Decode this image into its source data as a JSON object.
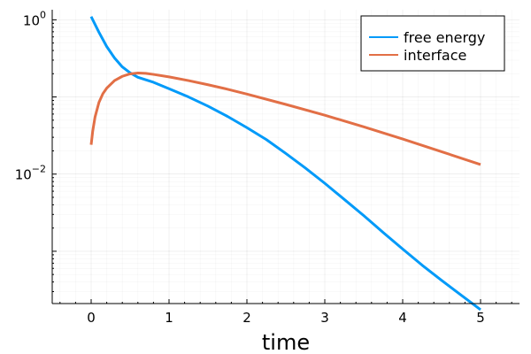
{
  "chart_data": {
    "type": "line",
    "title": "",
    "xlabel": "time",
    "ylabel": "",
    "xlim": [
      -0.5,
      5.5
    ],
    "ylim": [
      0.00021,
      1.35
    ],
    "y_scale": "log10",
    "grid": true,
    "legend_position": "top-right",
    "x_ticks": [
      0,
      1,
      2,
      3,
      4,
      5
    ],
    "x_tick_labels": [
      "0",
      "1",
      "2",
      "3",
      "4",
      "5"
    ],
    "y_ticks": [
      {
        "value": 1,
        "base": "10",
        "exponent": "0"
      },
      {
        "value": 0.01,
        "base": "10",
        "exponent": "−2"
      }
    ],
    "series": [
      {
        "name": "free energy",
        "color": "#009af9",
        "x": [
          0,
          0.1,
          0.2,
          0.3,
          0.4,
          0.5,
          0.6,
          0.8,
          1.0,
          1.25,
          1.5,
          1.75,
          2.0,
          2.25,
          2.5,
          2.75,
          3.0,
          3.25,
          3.5,
          3.75,
          4.0,
          4.25,
          4.5,
          4.75,
          5.0
        ],
        "y": [
          1.1,
          0.69,
          0.45,
          0.32,
          0.245,
          0.205,
          0.18,
          0.155,
          0.128,
          0.1,
          0.076,
          0.056,
          0.04,
          0.028,
          0.0185,
          0.012,
          0.0076,
          0.0047,
          0.0029,
          0.00175,
          0.00107,
          0.00066,
          0.00042,
          0.00027,
          0.000175
        ]
      },
      {
        "name": "interface",
        "color": "#e26f46",
        "x": [
          0,
          0.02,
          0.05,
          0.1,
          0.15,
          0.2,
          0.3,
          0.4,
          0.5,
          0.6,
          0.7,
          0.8,
          1.0,
          1.25,
          1.5,
          1.75,
          2.0,
          2.5,
          3.0,
          3.5,
          4.0,
          4.5,
          5.0
        ],
        "y": [
          0.024,
          0.036,
          0.055,
          0.085,
          0.11,
          0.13,
          0.163,
          0.185,
          0.199,
          0.204,
          0.202,
          0.196,
          0.182,
          0.163,
          0.144,
          0.126,
          0.109,
          0.08,
          0.058,
          0.041,
          0.0285,
          0.0195,
          0.0133
        ]
      }
    ]
  }
}
